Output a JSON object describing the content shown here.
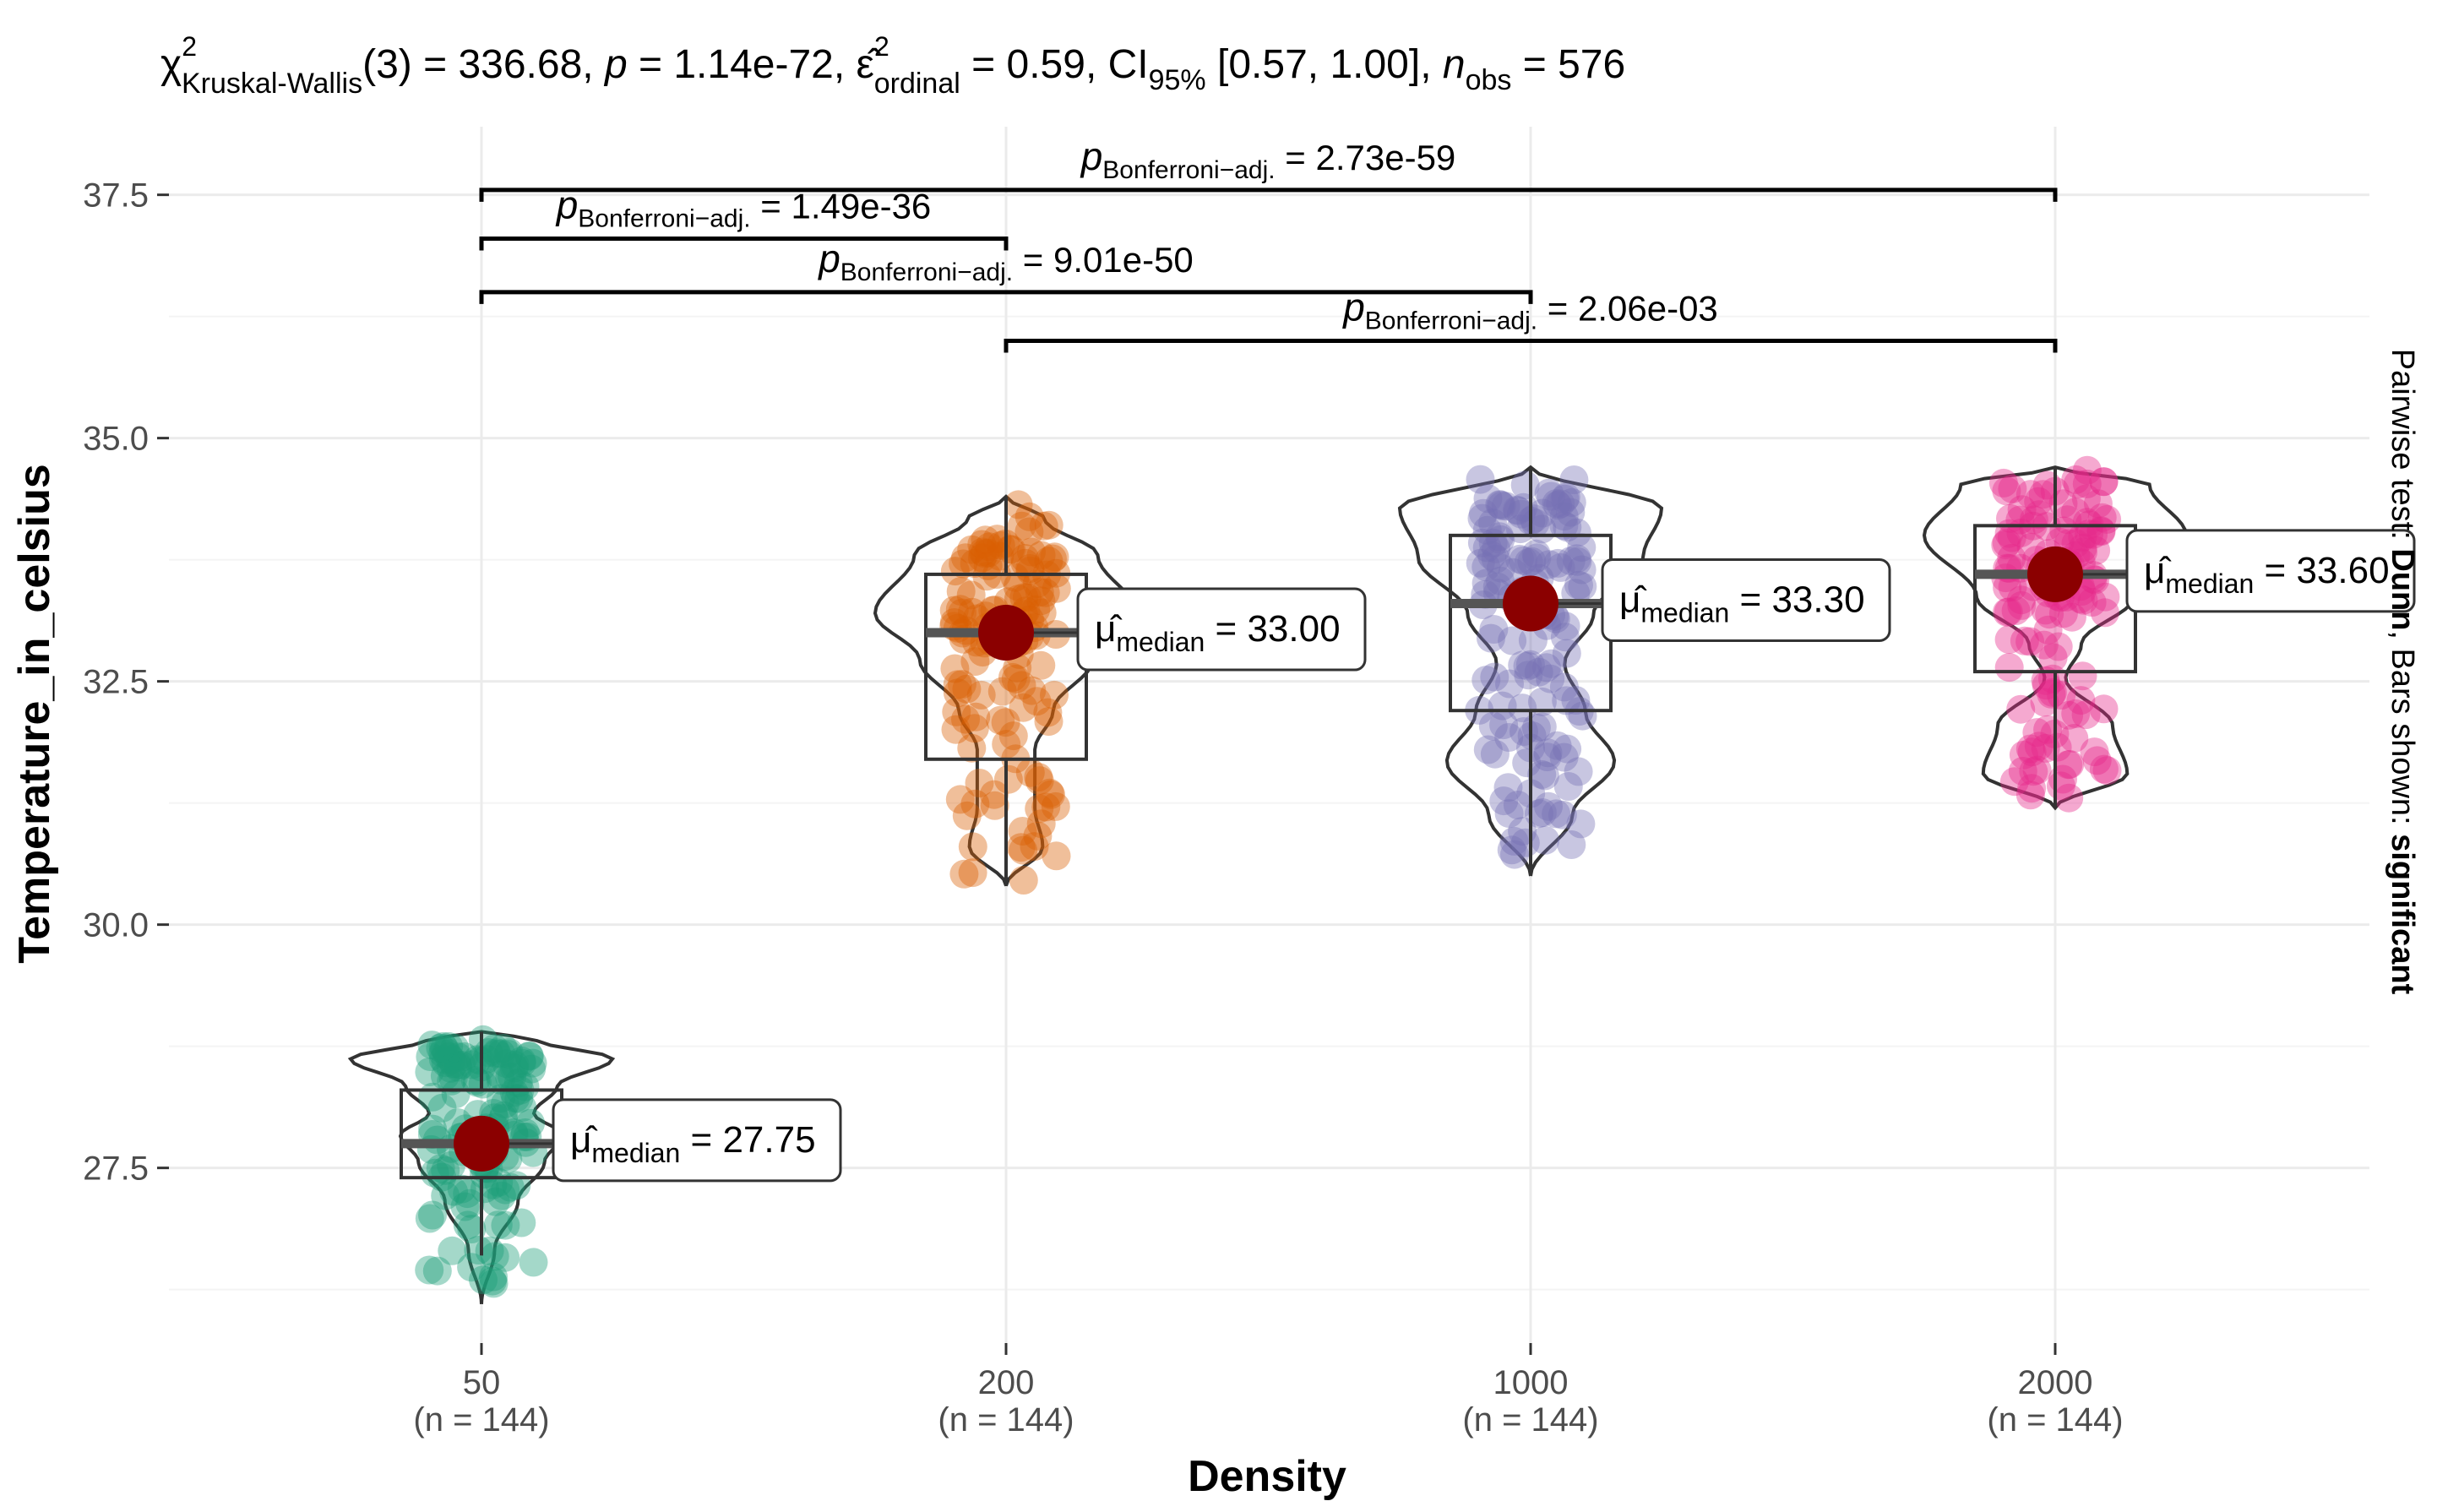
{
  "chart_data": {
    "type": "violin-box-scatter",
    "title": {
      "chi_symbol": "χ",
      "chi_superscript": "2",
      "chi_subscript": "Kruskal-Wallis",
      "df_text": "(3) = 336.68, ",
      "p_symbol": "p",
      "p_text": " = 1.14e-72, ",
      "eps_symbol": "ε̂",
      "eps_superscript": "2",
      "eps_subscript": "ordinal",
      "eps_text": " = 0.59, CI",
      "ci_subscript": "95%",
      "ci_text": " [0.57, 1.00], ",
      "n_symbol": "n",
      "n_subscript": "obs",
      "n_text": " = 576"
    },
    "xlabel": "Density",
    "ylabel": "Temperature_in_celsius",
    "ylim": [
      25.7,
      38.2
    ],
    "y_ticks": [
      {
        "value": 27.5,
        "label": "27.5"
      },
      {
        "value": 30.0,
        "label": "30.0"
      },
      {
        "value": 32.5,
        "label": "32.5"
      },
      {
        "value": 35.0,
        "label": "35.0"
      },
      {
        "value": 37.5,
        "label": "37.5"
      }
    ],
    "categories": [
      {
        "label": "50",
        "n_label": "(n = 144)",
        "color": "#1b9e77",
        "median": 27.75,
        "q1": 27.4,
        "q3": 28.3,
        "whisker_low": 26.6,
        "whisker_high": 28.9,
        "min": 26.1,
        "max": 28.9,
        "median_label_prefix": "μ̂",
        "median_label_sub": "median",
        "median_label_value": " = 27.75"
      },
      {
        "label": "200",
        "n_label": "(n = 144)",
        "color": "#d95f02",
        "median": 33.0,
        "q1": 31.7,
        "q3": 33.6,
        "whisker_low": 30.4,
        "whisker_high": 34.4,
        "min": 30.4,
        "max": 34.4,
        "median_label_prefix": "μ̂",
        "median_label_sub": "median",
        "median_label_value": " = 33.00"
      },
      {
        "label": "1000",
        "n_label": "(n = 144)",
        "color": "#7570b3",
        "median": 33.3,
        "q1": 32.2,
        "q3": 34.0,
        "whisker_low": 30.5,
        "whisker_high": 34.7,
        "min": 30.5,
        "max": 34.7,
        "median_label_prefix": "μ̂",
        "median_label_sub": "median",
        "median_label_value": " = 33.30"
      },
      {
        "label": "2000",
        "n_label": "(n = 144)",
        "color": "#e7298a",
        "median": 33.6,
        "q1": 32.6,
        "q3": 34.1,
        "whisker_low": 31.2,
        "whisker_high": 34.7,
        "min": 31.2,
        "max": 34.7,
        "median_label_prefix": "μ̂",
        "median_label_sub": "median",
        "median_label_value": " = 33.60"
      }
    ],
    "comparisons": [
      {
        "from": 0,
        "to": 3,
        "y": 37.55,
        "p_symbol": "p",
        "p_sub": "Bonferroni−adj.",
        "p_value": " = 2.73e-59"
      },
      {
        "from": 0,
        "to": 1,
        "y": 37.05,
        "p_symbol": "p",
        "p_sub": "Bonferroni−adj.",
        "p_value": " = 1.49e-36"
      },
      {
        "from": 0,
        "to": 2,
        "y": 36.5,
        "p_symbol": "p",
        "p_sub": "Bonferroni−adj.",
        "p_value": " = 9.01e-50"
      },
      {
        "from": 1,
        "to": 3,
        "y": 36.0,
        "p_symbol": "p",
        "p_sub": "Bonferroni−adj.",
        "p_value": " = 2.06e-03"
      }
    ],
    "caption": {
      "prefix": "Pairwise test: ",
      "test": "Dunn",
      "middle": ", Bars shown: ",
      "shown": "significant"
    },
    "median_point_color": "#8b0000"
  }
}
